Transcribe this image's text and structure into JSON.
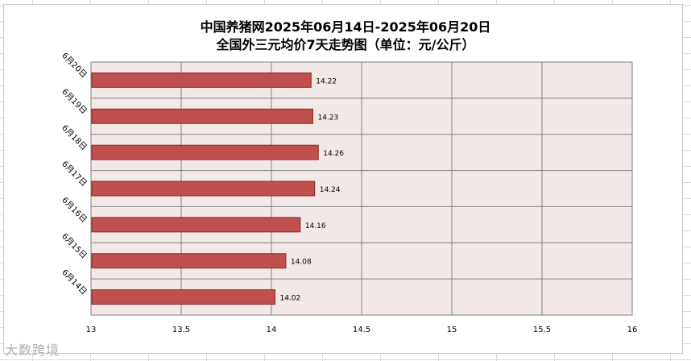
{
  "title_line1": "中国养猪网2025年06月14日-2025年06月20日",
  "title_line2": "全国外三元均价7天走势图（单位：元/公斤）",
  "watermark": "大数跨境",
  "chart_data": {
    "type": "bar",
    "orientation": "horizontal",
    "categories": [
      "6月20日",
      "6月19日",
      "6月18日",
      "6月17日",
      "6月16日",
      "6月15日",
      "6月14日"
    ],
    "values": [
      14.22,
      14.23,
      14.26,
      14.24,
      14.16,
      14.08,
      14.02
    ],
    "data_labels": [
      "14.22",
      "14.23",
      "14.26",
      "14.24",
      "14.16",
      "14.08",
      "14.02"
    ],
    "x_ticks": [
      "13",
      "13.5",
      "14",
      "14.5",
      "15",
      "15.5",
      "16"
    ],
    "xlim": [
      13,
      16
    ],
    "grid": true,
    "bar_color": "#c0504d",
    "bar_edge_color": "#8b2a28",
    "plot_background": "#f2e8e8"
  }
}
